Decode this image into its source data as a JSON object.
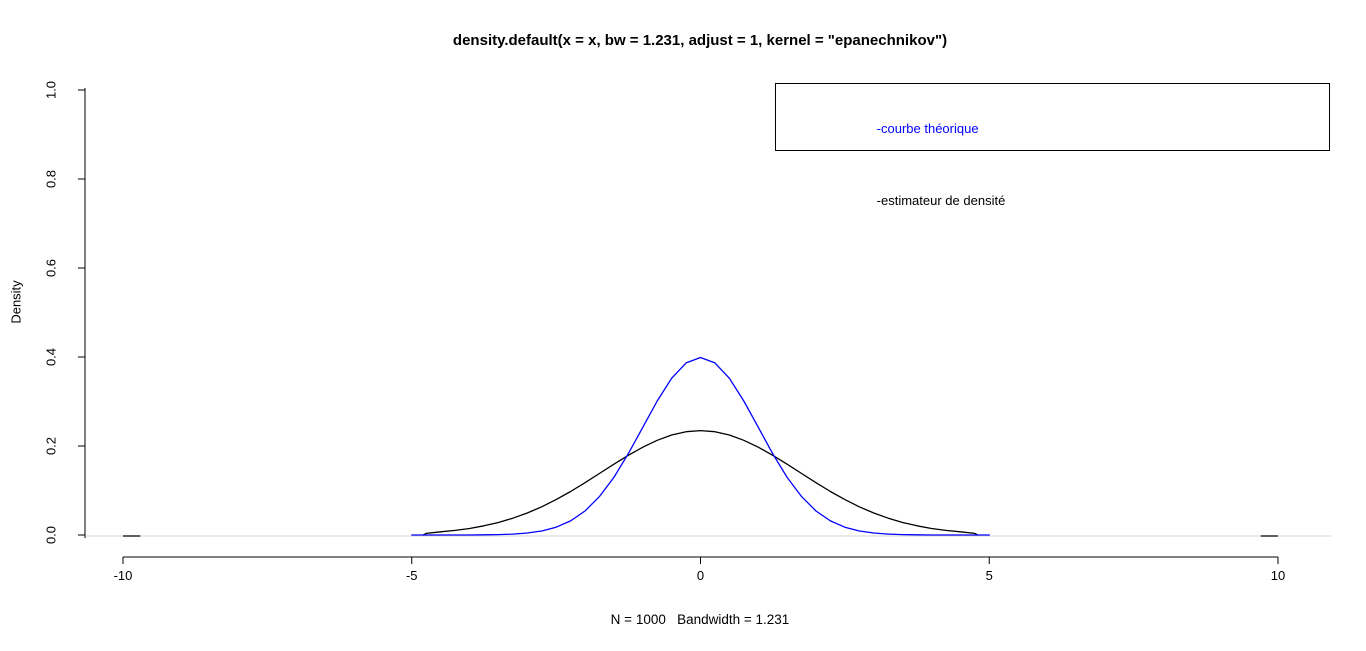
{
  "chart_data": {
    "type": "line",
    "title": "density.default(x = x, bw = 1.231, adjust = 1, kernel = \"epanechnikov\")",
    "xlabel": "N = 1000   Bandwidth = 1.231",
    "ylabel": "Density",
    "xlim": [
      -10,
      10
    ],
    "ylim": [
      0,
      1.0
    ],
    "grid": false,
    "x_ticks": [
      {
        "value": -10,
        "label": "-10"
      },
      {
        "value": -5,
        "label": "-5"
      },
      {
        "value": 0,
        "label": "0"
      },
      {
        "value": 5,
        "label": "5"
      },
      {
        "value": 10,
        "label": "10"
      }
    ],
    "y_ticks": [
      {
        "value": 0.0,
        "label": "0.0"
      },
      {
        "value": 0.2,
        "label": "0.2"
      },
      {
        "value": 0.4,
        "label": "0.4"
      },
      {
        "value": 0.6,
        "label": "0.6"
      },
      {
        "value": 0.8,
        "label": "0.8"
      },
      {
        "value": 1.0,
        "label": "1.0"
      }
    ],
    "zero_line": {
      "y": 0,
      "color": "#d3d3d3"
    },
    "edge_marks": [
      [
        -10,
        -9.7
      ],
      [
        9.7,
        10
      ]
    ],
    "legend": {
      "position": "top-right",
      "entries": [
        {
          "label": "-courbe théorique",
          "color": "#0000ff"
        },
        {
          "label": "-estimateur de densité",
          "color": "#000000"
        }
      ]
    },
    "series": [
      {
        "name": "courbe théorique",
        "color": "#0000ff",
        "points": [
          [
            -5,
            0
          ],
          [
            -4.75,
            0
          ],
          [
            -4.5,
            0
          ],
          [
            -4.25,
            0.0001
          ],
          [
            -4,
            0.0001
          ],
          [
            -3.75,
            0.0004
          ],
          [
            -3.5,
            0.0009
          ],
          [
            -3.25,
            0.002
          ],
          [
            -3,
            0.0044
          ],
          [
            -2.75,
            0.0091
          ],
          [
            -2.5,
            0.0175
          ],
          [
            -2.25,
            0.0317
          ],
          [
            -2,
            0.054
          ],
          [
            -1.75,
            0.0863
          ],
          [
            -1.5,
            0.1295
          ],
          [
            -1.25,
            0.1826
          ],
          [
            -1,
            0.242
          ],
          [
            -0.75,
            0.3011
          ],
          [
            -0.5,
            0.3521
          ],
          [
            -0.25,
            0.3867
          ],
          [
            0,
            0.3989
          ],
          [
            0.25,
            0.3867
          ],
          [
            0.5,
            0.3521
          ],
          [
            0.75,
            0.3011
          ],
          [
            1,
            0.242
          ],
          [
            1.25,
            0.1826
          ],
          [
            1.5,
            0.1295
          ],
          [
            1.75,
            0.0863
          ],
          [
            2,
            0.054
          ],
          [
            2.25,
            0.0317
          ],
          [
            2.5,
            0.0175
          ],
          [
            2.75,
            0.0091
          ],
          [
            3,
            0.0044
          ],
          [
            3.25,
            0.002
          ],
          [
            3.5,
            0.0009
          ],
          [
            3.75,
            0.0004
          ],
          [
            4,
            0.0001
          ],
          [
            4.25,
            0.0001
          ],
          [
            4.5,
            0
          ],
          [
            4.75,
            0
          ],
          [
            5,
            0
          ]
        ]
      },
      {
        "name": "estimateur de densité",
        "color": "#000000",
        "points": [
          [
            -4.8,
            0
          ],
          [
            -4.75,
            0.0035
          ],
          [
            -4.5,
            0.0071
          ],
          [
            -4.25,
            0.0103
          ],
          [
            -4,
            0.0147
          ],
          [
            -3.75,
            0.0206
          ],
          [
            -3.5,
            0.0282
          ],
          [
            -3.25,
            0.0377
          ],
          [
            -3,
            0.0495
          ],
          [
            -2.75,
            0.0634
          ],
          [
            -2.5,
            0.0796
          ],
          [
            -2.25,
            0.0978
          ],
          [
            -2,
            0.1175
          ],
          [
            -1.75,
            0.1382
          ],
          [
            -1.5,
            0.159
          ],
          [
            -1.25,
            0.1791
          ],
          [
            -1,
            0.1974
          ],
          [
            -0.75,
            0.2129
          ],
          [
            -0.5,
            0.2248
          ],
          [
            -0.25,
            0.2322
          ],
          [
            0,
            0.2347
          ],
          [
            0.25,
            0.2322
          ],
          [
            0.5,
            0.2248
          ],
          [
            0.75,
            0.2129
          ],
          [
            1,
            0.1974
          ],
          [
            1.25,
            0.1791
          ],
          [
            1.5,
            0.159
          ],
          [
            1.75,
            0.1382
          ],
          [
            2,
            0.1175
          ],
          [
            2.25,
            0.0978
          ],
          [
            2.5,
            0.0796
          ],
          [
            2.75,
            0.0634
          ],
          [
            3,
            0.0495
          ],
          [
            3.25,
            0.0377
          ],
          [
            3.5,
            0.0282
          ],
          [
            3.75,
            0.0206
          ],
          [
            4,
            0.0147
          ],
          [
            4.25,
            0.0103
          ],
          [
            4.5,
            0.0071
          ],
          [
            4.75,
            0.0035
          ],
          [
            4.8,
            0
          ]
        ]
      }
    ]
  }
}
